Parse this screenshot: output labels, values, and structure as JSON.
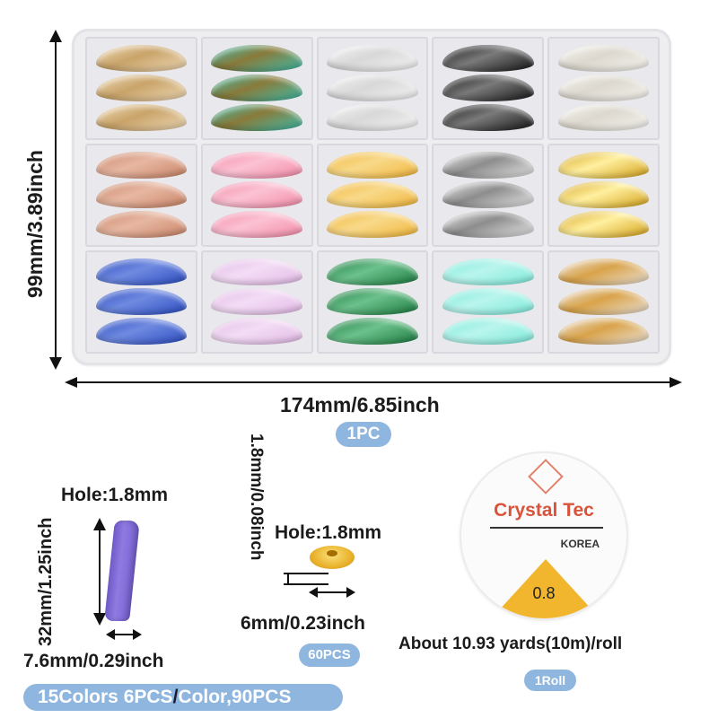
{
  "box": {
    "height_label": "99mm/3.89inch",
    "width_label": "174mm/6.85inch",
    "quantity_badge": "1PC",
    "compartments": [
      {
        "row": 1,
        "col": 1,
        "name": "beige-marble",
        "color": "#efd9b6",
        "accent": "#c9a46a"
      },
      {
        "row": 1,
        "col": 2,
        "name": "turquoise-marble",
        "color": "#3cbfae",
        "accent": "#8a7a3a"
      },
      {
        "row": 1,
        "col": 3,
        "name": "white-marble",
        "color": "#f4f4f4",
        "accent": "#d8d8d8"
      },
      {
        "row": 1,
        "col": 4,
        "name": "black-marble",
        "color": "#141414",
        "accent": "#7a7a7a"
      },
      {
        "row": 1,
        "col": 5,
        "name": "pearl-white",
        "color": "#f6f4ef",
        "accent": "#dcd8cf"
      },
      {
        "row": 2,
        "col": 1,
        "name": "terracotta-marble",
        "color": "#c98466",
        "accent": "#e7b7a2"
      },
      {
        "row": 2,
        "col": 2,
        "name": "pink-marble",
        "color": "#f48aa8",
        "accent": "#fbc2d3"
      },
      {
        "row": 2,
        "col": 3,
        "name": "mustard-marble",
        "color": "#f2b63a",
        "accent": "#f8d98a"
      },
      {
        "row": 2,
        "col": 4,
        "name": "grey-white-marble",
        "color": "#eaeaea",
        "accent": "#8d8d8d"
      },
      {
        "row": 2,
        "col": 5,
        "name": "gold-metallic",
        "color": "#d4a017",
        "accent": "#fff0a0"
      },
      {
        "row": 3,
        "col": 1,
        "name": "royal-blue-marble",
        "color": "#2c4cc2",
        "accent": "#6f8ae0"
      },
      {
        "row": 3,
        "col": 2,
        "name": "lilac-marble",
        "color": "#e2b9e6",
        "accent": "#f3dcf5"
      },
      {
        "row": 3,
        "col": 3,
        "name": "emerald-marble",
        "color": "#1b7a3e",
        "accent": "#6cc18c"
      },
      {
        "row": 3,
        "col": 4,
        "name": "mint-aqua",
        "color": "#7eeadb",
        "accent": "#b9f5ed"
      },
      {
        "row": 3,
        "col": 5,
        "name": "clear-gold-glitter",
        "color": "#ebe3da",
        "accent": "#d9a34a"
      }
    ]
  },
  "tube_bead": {
    "hole_label": "Hole:1.8mm",
    "length_label": "32mm/1.25inch",
    "width_label": "7.6mm/0.29inch",
    "quantity_badge": "15Colors 6PCS/Color,90PCS",
    "badge_parts": [
      "15Colors 6PCS",
      "/",
      "Color,90PCS"
    ],
    "color": "#7b66d6"
  },
  "spacer_bead": {
    "thickness_label": "1.8mm/0.08inch",
    "hole_label": "Hole:1.8mm",
    "diameter_label": "6mm/0.23inch",
    "quantity_badge": "60PCS",
    "color": "#e9b22c"
  },
  "elastic_cord": {
    "brand": "Crystal Tec",
    "origin": "KOREA",
    "size": "0.8",
    "length_label": "About 10.93 yards(10m)/roll",
    "quantity_badge": "1Roll",
    "brand_color": "#d9533b",
    "label_color": "#f1b52e"
  },
  "colors": {
    "badge_bg": "#8fb6de",
    "text": "#1b1b1b"
  }
}
